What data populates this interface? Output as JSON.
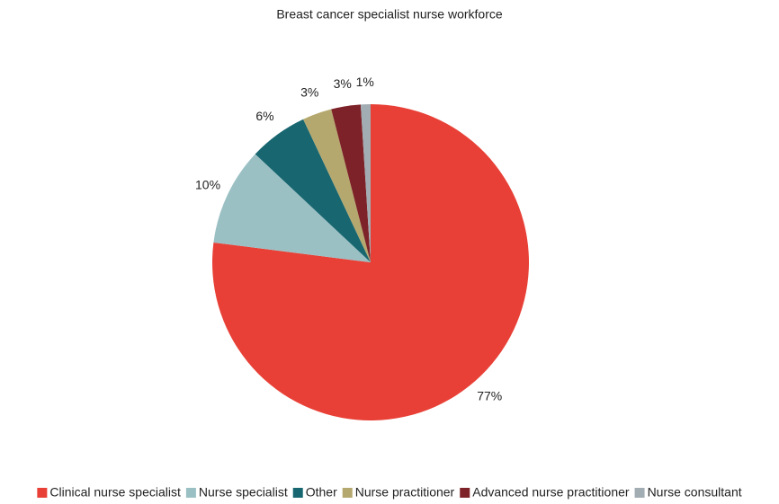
{
  "chart_data": {
    "type": "pie",
    "title": "Breast cancer specialist nurse workforce",
    "categories": [
      "Clinical nurse specialist",
      "Nurse specialist",
      "Other",
      "Nurse practitioner",
      "Advanced nurse practitioner",
      "Nurse consultant"
    ],
    "values": [
      77,
      10,
      6,
      3,
      3,
      1
    ],
    "value_labels": [
      "77%",
      "10%",
      "6%",
      "3%",
      "3%",
      "1%"
    ],
    "colors": [
      "#e84036",
      "#9bc0c4",
      "#176670",
      "#b5a86e",
      "#7d2228",
      "#a2acb3"
    ],
    "legend": "bottom"
  }
}
